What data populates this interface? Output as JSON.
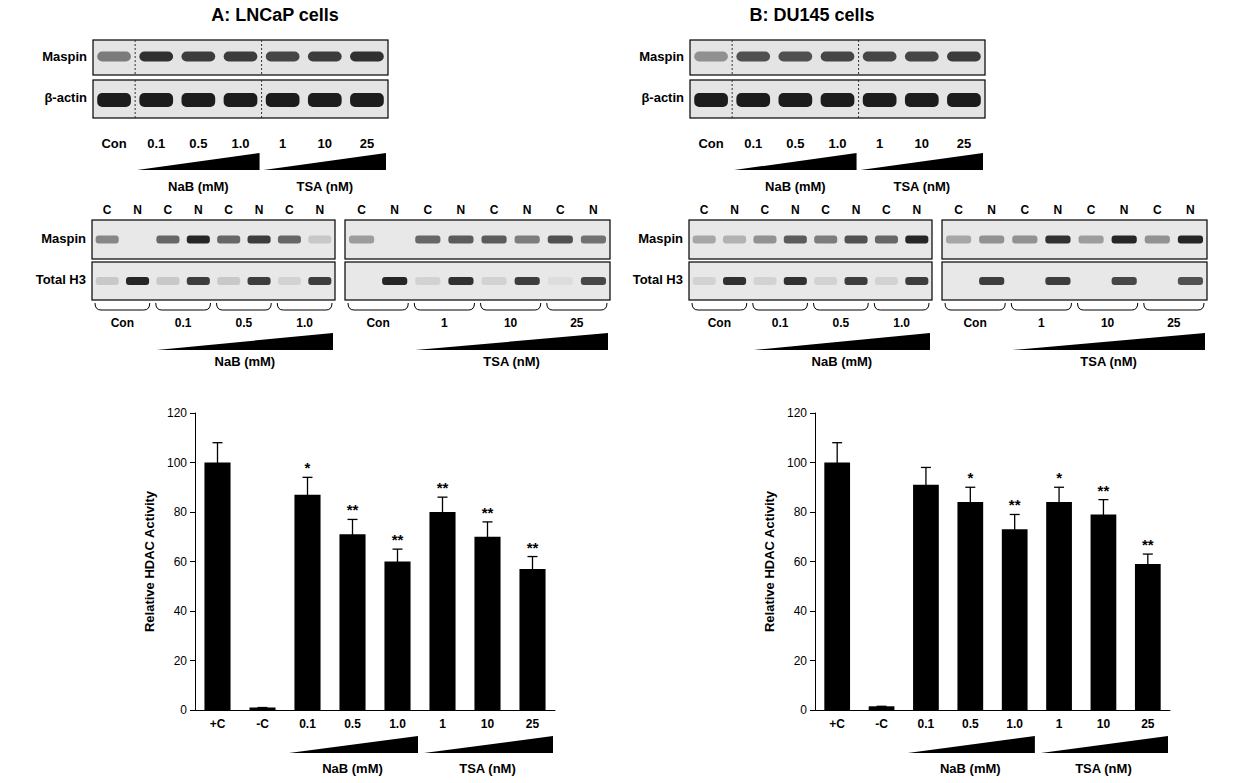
{
  "chart_data": [
    {
      "type": "bar",
      "y_label": "Relative HDAC Activity",
      "categories": [
        "+C",
        "-C",
        "0.1",
        "0.5",
        "1.0",
        "1",
        "10",
        "25"
      ],
      "values": [
        100,
        1,
        87,
        71,
        60,
        80,
        70,
        57
      ],
      "errors": [
        8,
        0,
        7,
        6,
        5,
        6,
        6,
        5
      ],
      "annotations": [
        null,
        null,
        "*",
        "**",
        "**",
        "**",
        "**",
        "**"
      ],
      "x_groups": [
        {
          "label": "NaB (mM)",
          "span": [
            2,
            4
          ]
        },
        {
          "label": "TSA (nM)",
          "span": [
            5,
            7
          ]
        }
      ],
      "color": "#000000",
      "ylim": [
        0,
        120
      ],
      "yticks": [
        0,
        20,
        40,
        60,
        80,
        100,
        120
      ],
      "grid": false
    },
    {
      "type": "bar",
      "y_label": "Relative HDAC Activity",
      "categories": [
        "+C",
        "-C",
        "0.1",
        "0.5",
        "1.0",
        "1",
        "10",
        "25"
      ],
      "values": [
        100,
        1.5,
        91,
        84,
        73,
        84,
        79,
        59
      ],
      "errors": [
        8,
        0,
        7,
        6,
        6,
        6,
        6,
        4
      ],
      "annotations": [
        null,
        null,
        null,
        "*",
        "**",
        "*",
        "**",
        "**"
      ],
      "x_groups": [
        {
          "label": "NaB (mM)",
          "span": [
            2,
            4
          ]
        },
        {
          "label": "TSA (nM)",
          "span": [
            5,
            7
          ]
        }
      ],
      "color": "#000000",
      "ylim": [
        0,
        120
      ],
      "yticks": [
        0,
        20,
        40,
        60,
        80,
        100,
        120
      ],
      "grid": false
    }
  ],
  "figure": {
    "panels": [
      {
        "title": "A: LNCaP cells",
        "lysate_blot": {
          "row_labels": [
            "Maspin",
            "β-actin"
          ],
          "lanes": [
            "Con",
            "0.1",
            "0.5",
            "1.0",
            "1",
            "10",
            "25"
          ],
          "bands": [
            [
              0.5,
              0.85,
              0.8,
              0.8,
              0.75,
              0.8,
              0.85
            ],
            [
              0.95,
              0.95,
              0.95,
              0.95,
              0.95,
              0.95,
              0.95
            ]
          ],
          "separators_after": [
            0,
            3
          ],
          "treatments": [
            {
              "label": "NaB (mM)",
              "span": [
                1,
                3
              ]
            },
            {
              "label": "TSA (nM)",
              "span": [
                4,
                6
              ]
            }
          ]
        },
        "fraction_blot": {
          "row_labels": [
            "Maspin",
            "Total H3"
          ],
          "boxes": [
            {
              "lanes": [
                "C",
                "N",
                "C",
                "N",
                "C",
                "N",
                "C",
                "N"
              ],
              "groups": [
                "Con",
                "0.1",
                "0.5",
                "1.0"
              ],
              "treatment": "NaB (mM)",
              "bands": [
                [
                  0.45,
                  0,
                  0.6,
                  0.9,
                  0.6,
                  0.8,
                  0.6,
                  0.15
                ],
                [
                  0.15,
                  0.9,
                  0.15,
                  0.8,
                  0.15,
                  0.8,
                  0.1,
                  0.8
                ]
              ]
            },
            {
              "lanes": [
                "C",
                "N",
                "C",
                "N",
                "C",
                "N",
                "C",
                "N"
              ],
              "groups": [
                "Con",
                "1",
                "10",
                "25"
              ],
              "treatment": "TSA (nM)",
              "bands": [
                [
                  0.35,
                  0,
                  0.6,
                  0.65,
                  0.65,
                  0.5,
                  0.7,
                  0.55
                ],
                [
                  0,
                  0.9,
                  0.1,
                  0.85,
                  0.1,
                  0.8,
                  0.05,
                  0.75
                ]
              ]
            }
          ]
        }
      },
      {
        "title": "B: DU145 cells",
        "lysate_blot": {
          "row_labels": [
            "Maspin",
            "β-actin"
          ],
          "lanes": [
            "Con",
            "0.1",
            "0.5",
            "1.0",
            "1",
            "10",
            "25"
          ],
          "bands": [
            [
              0.4,
              0.7,
              0.7,
              0.75,
              0.75,
              0.75,
              0.8
            ],
            [
              0.95,
              0.95,
              0.95,
              0.95,
              0.95,
              0.95,
              0.95
            ]
          ],
          "separators_after": [
            0,
            3
          ],
          "treatments": [
            {
              "label": "NaB (mM)",
              "span": [
                1,
                3
              ]
            },
            {
              "label": "TSA (nM)",
              "span": [
                4,
                6
              ]
            }
          ]
        },
        "fraction_blot": {
          "row_labels": [
            "Maspin",
            "Total H3"
          ],
          "boxes": [
            {
              "lanes": [
                "C",
                "N",
                "C",
                "N",
                "C",
                "N",
                "C",
                "N"
              ],
              "groups": [
                "Con",
                "0.1",
                "0.5",
                "1.0"
              ],
              "treatment": "NaB (mM)",
              "bands": [
                [
                  0.3,
                  0.25,
                  0.4,
                  0.65,
                  0.5,
                  0.7,
                  0.6,
                  0.9
                ],
                [
                  0.1,
                  0.85,
                  0.1,
                  0.85,
                  0.1,
                  0.8,
                  0.1,
                  0.8
                ]
              ]
            },
            {
              "lanes": [
                "C",
                "N",
                "C",
                "N",
                "C",
                "N",
                "C",
                "N"
              ],
              "groups": [
                "Con",
                "1",
                "10",
                "25"
              ],
              "treatment": "TSA (nM)",
              "bands": [
                [
                  0.3,
                  0.4,
                  0.4,
                  0.85,
                  0.35,
                  0.9,
                  0.4,
                  0.9
                ],
                [
                  0,
                  0.8,
                  0,
                  0.8,
                  0,
                  0.75,
                  0,
                  0.7
                ]
              ]
            }
          ]
        }
      }
    ]
  }
}
